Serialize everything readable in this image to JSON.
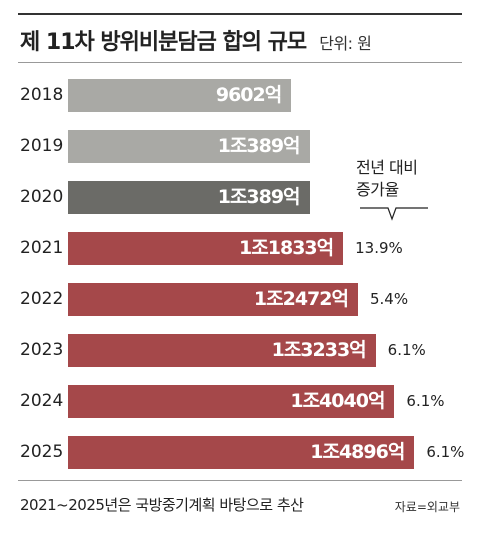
{
  "header": {
    "title": "제 11차 방위비분담금 합의 규모",
    "unit": "단위: 원"
  },
  "colors": {
    "past": "#a9a9a5",
    "current": "#6b6b67",
    "future": "#a5484a"
  },
  "chart_data": {
    "type": "bar",
    "orientation": "horizontal",
    "categories": [
      "2018",
      "2019",
      "2020",
      "2021",
      "2022",
      "2023",
      "2024",
      "2025"
    ],
    "values": [
      9602,
      10389,
      10389,
      11833,
      12472,
      13233,
      14040,
      14896
    ],
    "value_unit": "억 원",
    "value_labels": [
      "9602억",
      "1조389억",
      "1조389억",
      "1조1833억",
      "1조2472억",
      "1조3233억",
      "1조4040억",
      "1조4896억"
    ],
    "growth_rates": [
      "",
      "",
      "",
      "13.9%",
      "5.4%",
      "6.1%",
      "6.1%",
      "6.1%"
    ],
    "bar_styles": [
      "past",
      "past",
      "current",
      "future",
      "future",
      "future",
      "future",
      "future"
    ],
    "rate_legend": {
      "line1": "전년 대비",
      "line2": "증가율"
    }
  },
  "footer": {
    "note": "2021~2025년은 국방중기계획 바탕으로 추산",
    "source": "자료=외교부"
  }
}
